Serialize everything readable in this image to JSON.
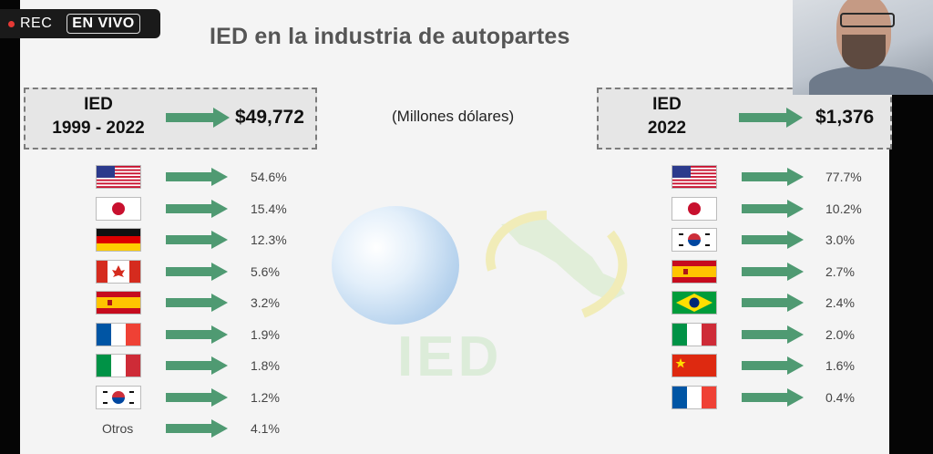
{
  "overlay": {
    "rec_label": "REC",
    "live_label": "EN VIVO"
  },
  "slide": {
    "title": "IED en la industria de autopartes",
    "units": "(Millones dólares)",
    "left_box": {
      "label_line1": "IED",
      "label_line2": "1999 - 2022",
      "value": "$49,772"
    },
    "right_box": {
      "label_line1": "IED",
      "label_line2": "2022",
      "value": "$1,376"
    },
    "background_watermark": "IED",
    "left_list": [
      {
        "country": "Estados Unidos",
        "flag": "us",
        "pct": "54.6%"
      },
      {
        "country": "Japón",
        "flag": "jp",
        "pct": "15.4%"
      },
      {
        "country": "Alemania",
        "flag": "de",
        "pct": "12.3%"
      },
      {
        "country": "Canadá",
        "flag": "ca",
        "pct": "5.6%"
      },
      {
        "country": "España",
        "flag": "es",
        "pct": "3.2%"
      },
      {
        "country": "Francia",
        "flag": "fr",
        "pct": "1.9%"
      },
      {
        "country": "Italia",
        "flag": "it",
        "pct": "1.8%"
      },
      {
        "country": "Corea del Sur",
        "flag": "kr",
        "pct": "1.2%"
      },
      {
        "country": "Otros",
        "flag": "",
        "label": "Otros",
        "pct": "4.1%"
      }
    ],
    "right_list": [
      {
        "country": "Estados Unidos",
        "flag": "us",
        "pct": "77.7%"
      },
      {
        "country": "Japón",
        "flag": "jp",
        "pct": "10.2%"
      },
      {
        "country": "Corea del Sur",
        "flag": "kr",
        "pct": "3.0%"
      },
      {
        "country": "España",
        "flag": "es",
        "pct": "2.7%"
      },
      {
        "country": "Brasil",
        "flag": "br",
        "pct": "2.4%"
      },
      {
        "country": "Italia",
        "flag": "it",
        "pct": "2.0%"
      },
      {
        "country": "China",
        "flag": "cn",
        "pct": "1.6%"
      },
      {
        "country": "Francia",
        "flag": "fr",
        "pct": "0.4%"
      }
    ],
    "colors": {
      "arrow": "#4f9a72",
      "box_border": "#7c7c7c",
      "title": "#555555"
    }
  }
}
